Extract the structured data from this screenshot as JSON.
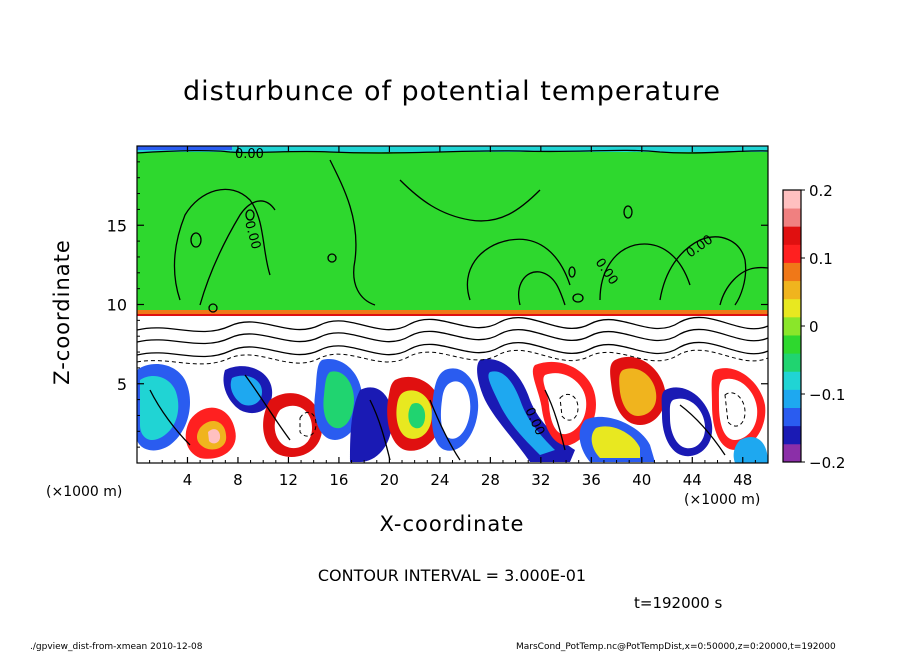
{
  "chart_data": {
    "type": "heatmap",
    "title": "disturbunce of potential temperature",
    "xlabel": "X-coordinate",
    "ylabel": "Z-coordinate",
    "x_unit_left": "(×1000 m)",
    "x_unit_right": "(×1000 m)",
    "xlim": [
      0,
      50
    ],
    "ylim": [
      0,
      20
    ],
    "x_ticks": [
      "4",
      "8",
      "12",
      "16",
      "20",
      "24",
      "28",
      "32",
      "36",
      "40",
      "44",
      "48"
    ],
    "x_tick_values": [
      4,
      8,
      12,
      16,
      20,
      24,
      28,
      32,
      36,
      40,
      44,
      48
    ],
    "y_ticks": [
      "5",
      "10",
      "15"
    ],
    "y_tick_values": [
      5,
      10,
      15
    ],
    "colorbar": {
      "range": [
        -0.2,
        0.2
      ],
      "labels": [
        "0.2",
        "0.1",
        "0",
        "−0.1",
        "−0.2"
      ],
      "label_values": [
        0.2,
        0.1,
        0,
        -0.1,
        -0.2
      ],
      "colors": [
        "#8b2fa8",
        "#1a1ab4",
        "#2a5cf0",
        "#1ea8f0",
        "#20d4d4",
        "#20d470",
        "#2ed82e",
        "#8ae62a",
        "#e8e820",
        "#f0b41e",
        "#f07818",
        "#ff2020",
        "#e01010",
        "#f08080",
        "#ffc0c0"
      ]
    },
    "contour_labels": [
      "0.00",
      "0.00",
      "0.00",
      "0.00",
      "0.00"
    ],
    "contour_interval": "CONTOUR INTERVAL = 3.000E-01",
    "time": "t=192000 s"
  },
  "footer": {
    "left": "./gpview_dist-from-xmean  2010-12-08",
    "right": "MarsCond_PotTemp.nc@PotTempDist,x=0:50000,z=0:20000,t=192000"
  }
}
